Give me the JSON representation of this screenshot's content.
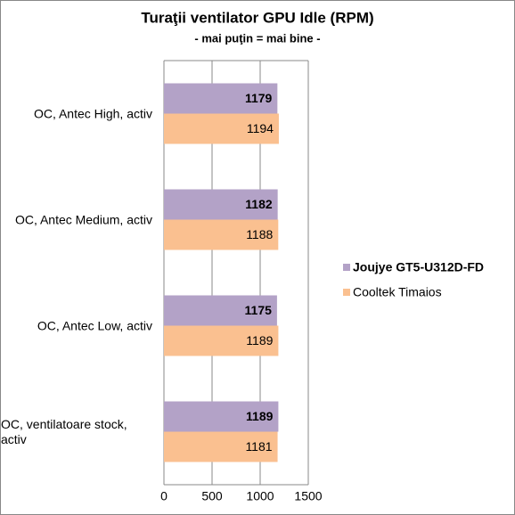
{
  "chart_data": {
    "type": "hbar",
    "title": "Turaţii ventilator GPU Idle (RPM)",
    "subtitle": "- mai puţin = mai bine -",
    "categories": [
      "OC, Antec High, activ",
      "OC, Antec Medium, activ",
      "OC, Antec Low, activ",
      "OC, ventilatoare stock, activ"
    ],
    "series": [
      {
        "name": "Joujye GT5-U312D-FD",
        "color": "#b3a2c7",
        "values": [
          1179,
          1182,
          1175,
          1189
        ]
      },
      {
        "name": "Cooltek Timaios",
        "color": "#fac090",
        "values": [
          1194,
          1188,
          1189,
          1181
        ]
      }
    ],
    "xlim": [
      0,
      1500
    ],
    "xticks": [
      0,
      500,
      1000,
      1500
    ],
    "grid": true,
    "legend": "right"
  }
}
